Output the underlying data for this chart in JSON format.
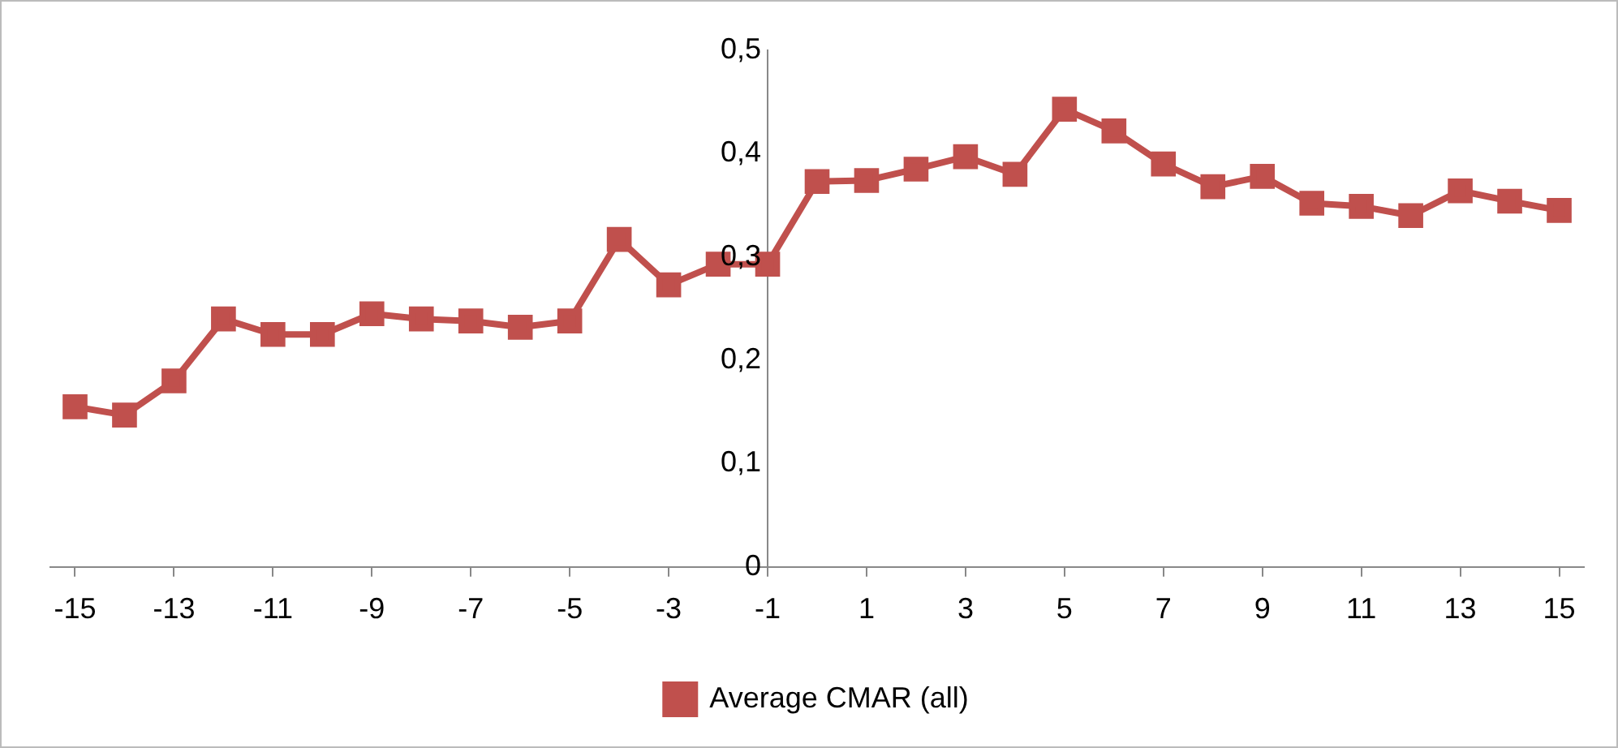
{
  "chart_data": {
    "type": "line",
    "x": [
      -15,
      -14,
      -13,
      -12,
      -11,
      -10,
      -9,
      -8,
      -7,
      -6,
      -5,
      -4,
      -3,
      -2,
      -1,
      0,
      1,
      2,
      3,
      4,
      5,
      6,
      7,
      8,
      9,
      10,
      11,
      12,
      13,
      14,
      15
    ],
    "series": [
      {
        "name": "Average CMAR (all)",
        "color": "#c0504d",
        "values": [
          0.155,
          0.147,
          0.18,
          0.24,
          0.225,
          0.225,
          0.245,
          0.24,
          0.238,
          0.232,
          0.238,
          0.317,
          0.273,
          0.293,
          0.293,
          0.373,
          0.374,
          0.385,
          0.397,
          0.38,
          0.443,
          0.422,
          0.39,
          0.368,
          0.378,
          0.352,
          0.349,
          0.34,
          0.364,
          0.354,
          0.345
        ]
      }
    ],
    "xlim": [
      -15.5,
      15.5
    ],
    "xticks": [
      -15,
      -13,
      -11,
      -9,
      -7,
      -5,
      -3,
      -1,
      1,
      3,
      5,
      7,
      9,
      11,
      13,
      15
    ],
    "ylim": [
      0,
      0.5
    ],
    "yticks": [
      {
        "value": 0,
        "label": "0"
      },
      {
        "value": 0.1,
        "label": "0,1"
      },
      {
        "value": 0.2,
        "label": "0,2"
      },
      {
        "value": 0.3,
        "label": "0,3"
      },
      {
        "value": 0.4,
        "label": "0,4"
      },
      {
        "value": 0.5,
        "label": "0,5"
      }
    ],
    "grid": false,
    "legend": "bottom",
    "marker": "square",
    "line_style": "solid"
  }
}
